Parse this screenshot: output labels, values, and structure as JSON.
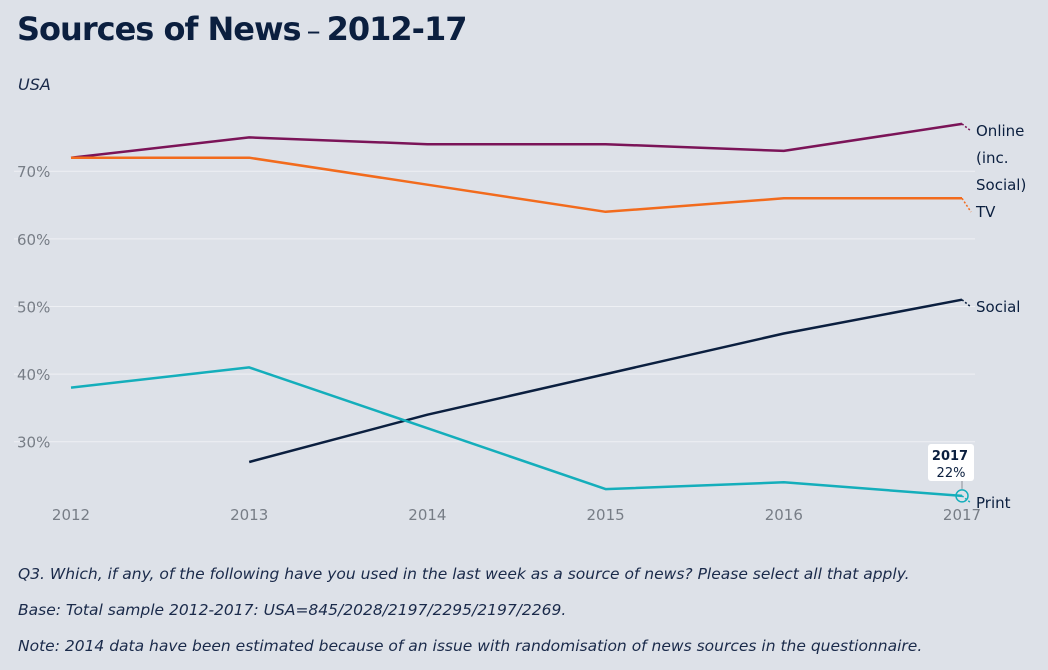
{
  "header": {
    "title": "Sources of News",
    "separator": "–",
    "title_years": "2012-17",
    "subtitle": "USA"
  },
  "notes": [
    "Q3. Which, if any, of the following have you used in the last week as a source of news? Please select all that apply.",
    "Base: Total sample 2012-2017: USA=845/2028/2197/2295/2197/2269.",
    "Note: 2014 data have been estimated because of an issue with randomisation of news sources in the questionnaire."
  ],
  "tooltip": {
    "year": "2017",
    "value": "22%"
  },
  "colors": {
    "background": "#dde1e8",
    "gridline": "#eef0f4",
    "online": "#7b1458",
    "tv": "#f26b1d",
    "social": "#0b1f3f",
    "print": "#14aebb"
  },
  "chart_data": {
    "type": "line",
    "title": "Sources of News – 2012-17",
    "subtitle": "USA",
    "x": [
      2012,
      2013,
      2014,
      2015,
      2016,
      2017
    ],
    "x_tick_labels": [
      "2012",
      "2013",
      "2014",
      "2015",
      "2016",
      "2017"
    ],
    "y_ticks": [
      30,
      40,
      50,
      60,
      70
    ],
    "y_tick_labels": [
      "30%",
      "40%",
      "50%",
      "60%",
      "70%"
    ],
    "ylim": [
      20.5,
      79.2
    ],
    "grid": true,
    "legend": "end-of-line labels (right)",
    "series": [
      {
        "key": "online",
        "label_lines": [
          "Online",
          "(inc.",
          "Social)"
        ],
        "values": [
          72,
          75,
          74,
          74,
          73,
          77
        ]
      },
      {
        "key": "tv",
        "label_lines": [
          "TV"
        ],
        "values": [
          72,
          72,
          68,
          64,
          66,
          66
        ]
      },
      {
        "key": "social",
        "label_lines": [
          "Social"
        ],
        "values": [
          null,
          27,
          34,
          40,
          46,
          51
        ]
      },
      {
        "key": "print",
        "label_lines": [
          "Print"
        ],
        "values": [
          38,
          41,
          32,
          23,
          24,
          22
        ]
      }
    ]
  }
}
